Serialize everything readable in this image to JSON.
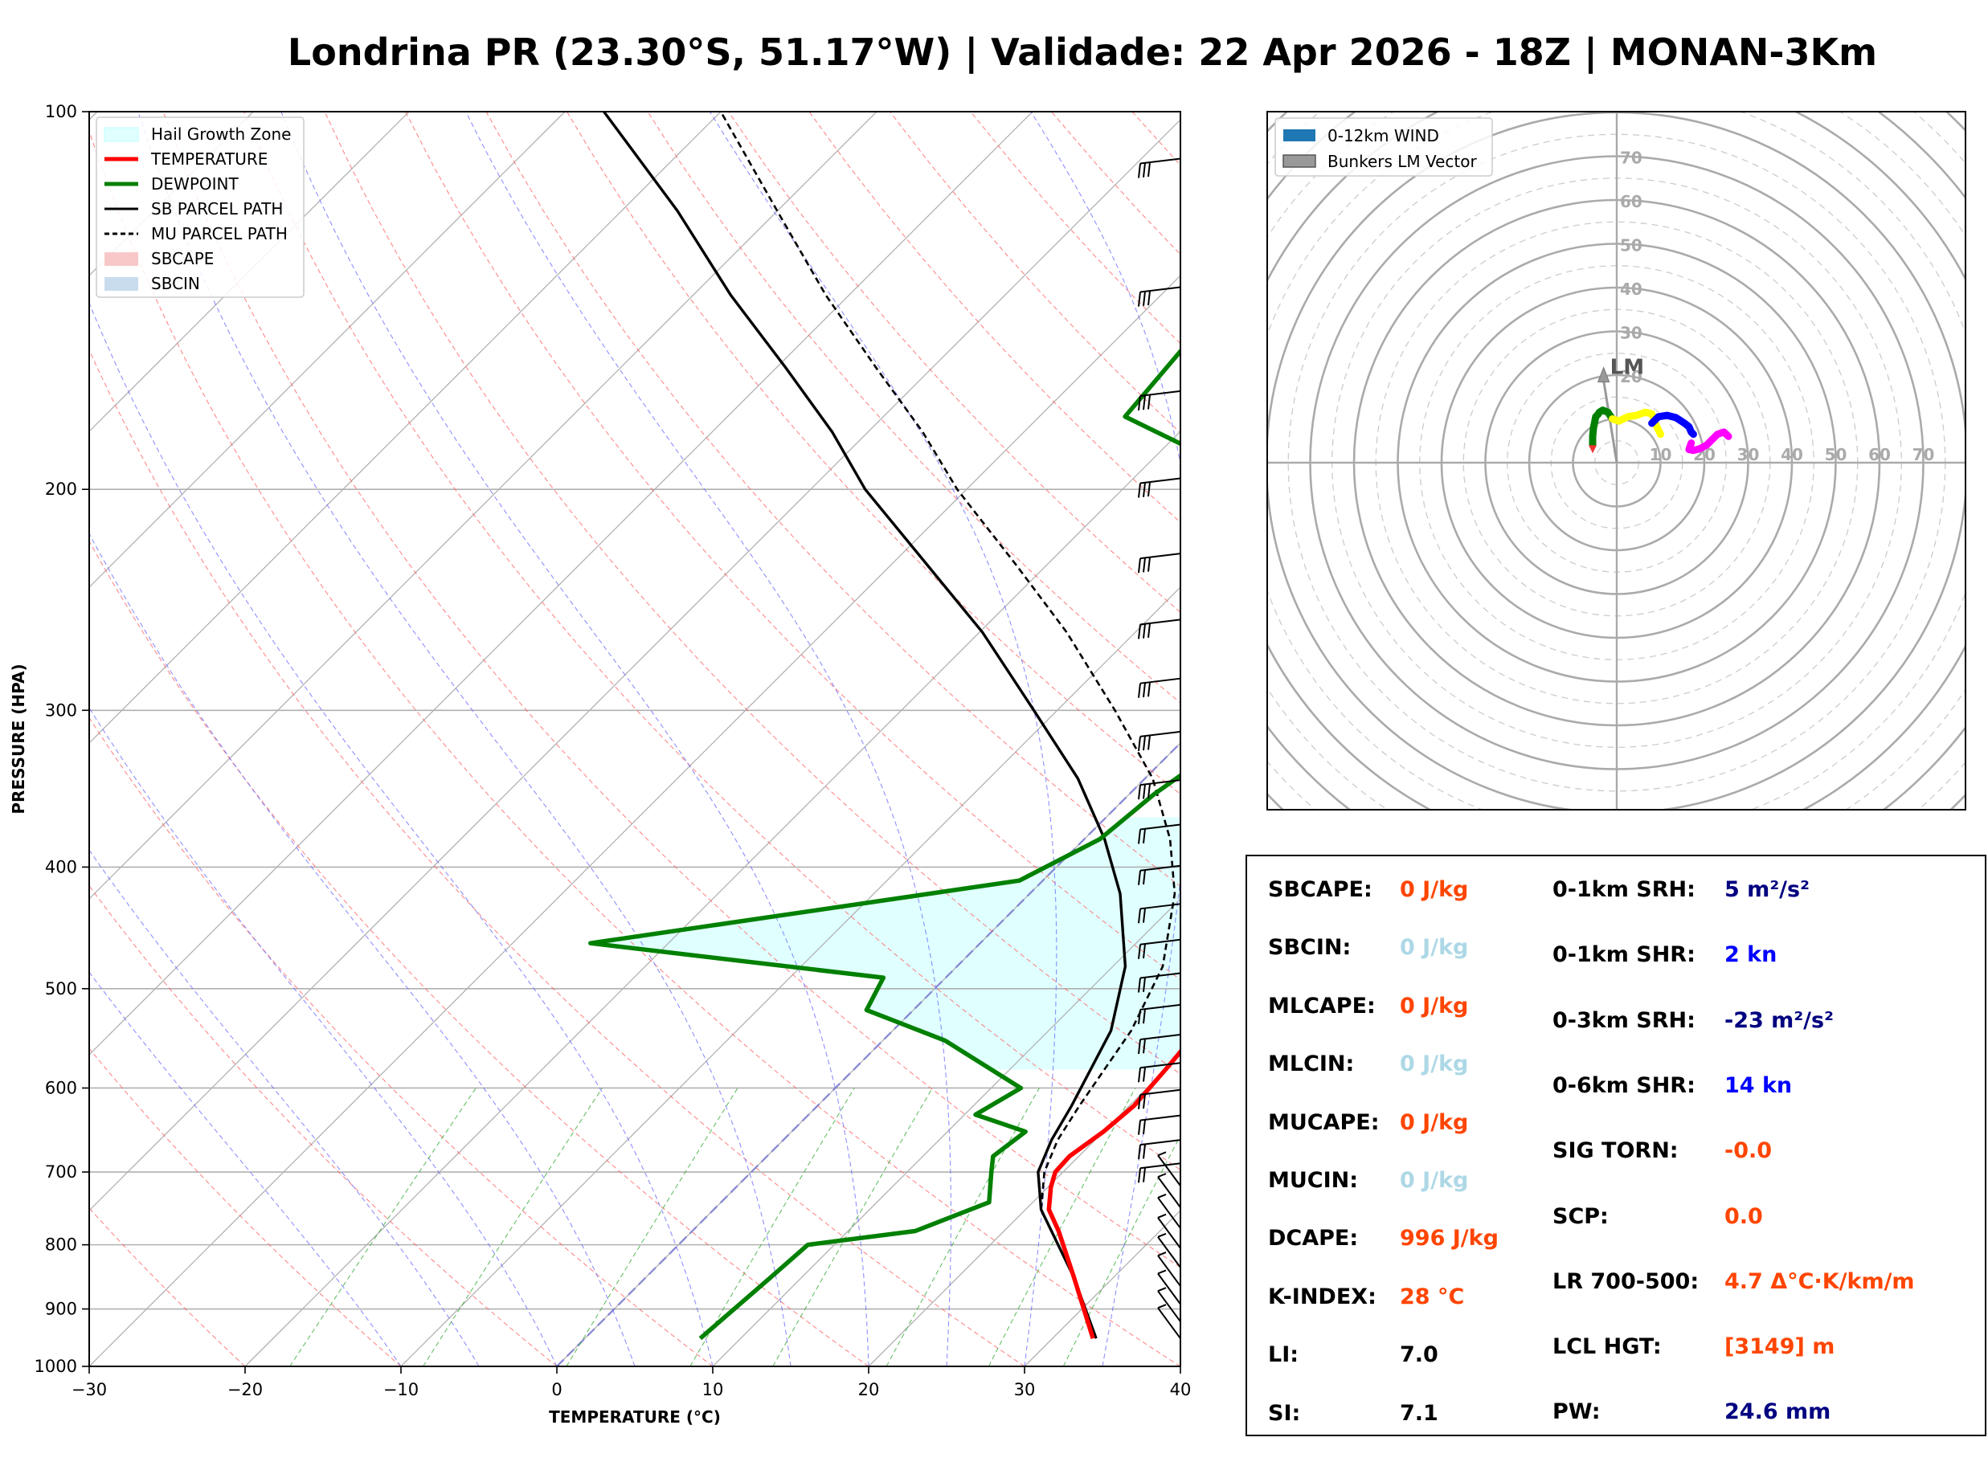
{
  "title": "Londrina PR (23.30°S, 51.17°W) | Validade: 22 Apr 2026 - 18Z | MONAN-3Km",
  "chart_data": [
    {
      "type": "line",
      "subtype": "skew-t log-p",
      "xlabel": "TEMPERATURE (°C)",
      "ylabel": "PRESSURE (HPA)",
      "xlim": [
        -30,
        40
      ],
      "ylim": [
        1000,
        100
      ],
      "yscale": "log",
      "x_ticks": [
        "−30",
        "−20",
        "−10",
        "0",
        "10",
        "20",
        "30",
        "40"
      ],
      "y_ticks": [
        "100",
        "200",
        "300",
        "400",
        "500",
        "600",
        "700",
        "800",
        "900",
        "1000"
      ],
      "grid": true,
      "legend_position": "top-left",
      "legend": [
        {
          "label": "Hail Growth Zone",
          "color": "#e0ffff"
        },
        {
          "label": "TEMPERATURE",
          "color": "#ff0000"
        },
        {
          "label": "DEWPOINT",
          "color": "#008000"
        },
        {
          "label": "SB PARCEL PATH",
          "color": "#000000"
        },
        {
          "label": "MU PARCEL PATH",
          "color": "#000000"
        },
        {
          "label": "SBCAPE",
          "color": "#f8c8c8"
        },
        {
          "label": "SBCIN",
          "color": "#c8dcee"
        }
      ],
      "temperature": {
        "p": [
          950,
          850,
          780,
          750,
          720,
          700,
          680,
          650,
          620,
          580,
          540,
          480,
          440,
          400,
          380,
          350,
          320,
          280,
          250,
          230,
          190,
          170,
          150,
          135,
          118,
          100
        ],
        "t": [
          32.6,
          27.5,
          23.5,
          21.5,
          20.2,
          19.5,
          19.4,
          20.0,
          20.3,
          20.0,
          19.6,
          18.5,
          18.6,
          17.6,
          17.0,
          16.1,
          14.5,
          10.5,
          6.8,
          4.2,
          -1.9,
          -5.6,
          -9.4,
          -12.0,
          -14.7,
          -16.0
        ]
      },
      "dewpoint": {
        "p": [
          950,
          850,
          800,
          780,
          740,
          700,
          680,
          650,
          630,
          600,
          550,
          520,
          490,
          460,
          410,
          380,
          350,
          300,
          280,
          240,
          210,
          200,
          175,
          145,
          120,
          100
        ],
        "t": [
          7.4,
          8.0,
          8.3,
          14.3,
          17.2,
          15.4,
          14.5,
          15.0,
          10.7,
          11.9,
          4.0,
          -3.0,
          -4.0,
          -25.0,
          -1.5,
          1.0,
          1.6,
          3.8,
          -1.4,
          -6.8,
          -9.0,
          -10.3,
          -24.5,
          -25.5,
          -26.5,
          -27.5
        ]
      },
      "sb_parcel": {
        "p": [
          950,
          850,
          750,
          700,
          660,
          620,
          540,
          480,
          420,
          380,
          340,
          300,
          260,
          230,
          200,
          180,
          160,
          140,
          120,
          100
        ],
        "t": [
          32.8,
          27.5,
          21.0,
          18.4,
          17.2,
          16.3,
          14.0,
          10.8,
          5.8,
          1.3,
          -4.3,
          -11.5,
          -19.8,
          -27.6,
          -36.5,
          -42.3,
          -49.4,
          -57.6,
          -66.4,
          -77.5
        ]
      },
      "mu_parcel": {
        "p": [
          750,
          700,
          660,
          620,
          540,
          480,
          420,
          380,
          340,
          300,
          260,
          230,
          200,
          180,
          160,
          140,
          120,
          100
        ],
        "t": [
          21.0,
          18.8,
          17.6,
          16.8,
          15.3,
          13.2,
          9.3,
          5.5,
          0.5,
          -6.3,
          -14.4,
          -21.9,
          -30.6,
          -36.5,
          -43.6,
          -51.5,
          -60.0,
          -70.0
        ]
      },
      "hail_growth_zone": {
        "p_bottom": 580,
        "p_top": 365
      },
      "wind_barbs": true
    },
    {
      "type": "line",
      "subtype": "hodograph",
      "rings": [
        10,
        20,
        30,
        40,
        50,
        60,
        70
      ],
      "ring_labels": [
        "10",
        "20",
        "30",
        "40",
        "50",
        "60",
        "70"
      ],
      "legend_position": "top-left",
      "legend": [
        {
          "label": "0-12km WIND",
          "color": "#1f77b4"
        },
        {
          "label": "Bunkers LM Vector",
          "color": "#999999"
        }
      ],
      "lm_label": "LM",
      "lm_vector": {
        "u": -3,
        "v": 21
      },
      "segments": [
        {
          "color": "#008000",
          "u": [
            -5.5,
            -5.5,
            -5.3,
            -5.0,
            -4.8,
            -4.3,
            -4.0,
            -3.2,
            -2.0,
            -1.0
          ],
          "v": [
            4.0,
            6.0,
            8.0,
            9.5,
            10.5,
            11.0,
            11.5,
            12.0,
            11.5,
            10.0
          ]
        },
        {
          "color": "#ffff00",
          "u": [
            -1.0,
            0.5,
            2.5,
            4.5,
            6.5,
            8.0,
            8.5,
            9.0,
            10.0
          ],
          "v": [
            10.0,
            9.5,
            10.5,
            10.8,
            11.5,
            11.2,
            10.0,
            8.5,
            6.5
          ]
        },
        {
          "color": "#0000ff",
          "u": [
            8.0,
            9.5,
            11.5,
            13.5,
            15.5,
            16.5,
            17.0,
            17.5
          ],
          "v": [
            9.0,
            10.5,
            10.8,
            10.3,
            9.0,
            8.2,
            7.0,
            6.5
          ]
        },
        {
          "color": "#ff00ff",
          "u": [
            17.0,
            16.5,
            17.5,
            19.0,
            20.5,
            22.0,
            23.0,
            24.5,
            25.5
          ],
          "v": [
            4.5,
            3.0,
            2.8,
            3.2,
            4.0,
            5.5,
            6.5,
            7.0,
            6.0
          ]
        }
      ]
    }
  ],
  "indices": [
    {
      "label": "SBCAPE:",
      "value": "0 J/kg",
      "color": "#ff4500"
    },
    {
      "label": "SBCIN:",
      "value": "0 J/kg",
      "color": "#add8e6"
    },
    {
      "label": "MLCAPE:",
      "value": "0 J/kg",
      "color": "#ff4500"
    },
    {
      "label": "MLCIN:",
      "value": "0 J/kg",
      "color": "#add8e6"
    },
    {
      "label": "MUCAPE:",
      "value": "0 J/kg",
      "color": "#ff4500"
    },
    {
      "label": "MUCIN:",
      "value": "0 J/kg",
      "color": "#add8e6"
    },
    {
      "label": "DCAPE:",
      "value": "996 J/kg",
      "color": "#ff4500"
    },
    {
      "label": "K-INDEX:",
      "value": "28 °C",
      "color": "#ff4500"
    },
    {
      "label": "LI:",
      "value": "7.0",
      "color": "#000000"
    },
    {
      "label": "SI:",
      "value": "7.1",
      "color": "#000000"
    }
  ],
  "indices_right": [
    {
      "label": "0-1km SRH:",
      "value": "5 m²/s²",
      "color": "#000080"
    },
    {
      "label": "0-1km SHR:",
      "value": "2 kn",
      "color": "#0000ff"
    },
    {
      "label": "0-3km SRH:",
      "value": "-23 m²/s²",
      "color": "#000080"
    },
    {
      "label": "0-6km SHR:",
      "value": "14 kn",
      "color": "#0000ff"
    },
    {
      "label": "SIG TORN:",
      "value": "-0.0",
      "color": "#ff4500"
    },
    {
      "label": "SCP:",
      "value": "0.0",
      "color": "#ff4500"
    },
    {
      "label": "LR 700-500:",
      "value": "4.7 Δ°C·K/km/m",
      "color": "#ff4500"
    },
    {
      "label": "LCL HGT:",
      "value": "[3149] m",
      "color": "#ff4500"
    },
    {
      "label": "PW:",
      "value": "24.6 mm",
      "color": "#000080"
    }
  ]
}
